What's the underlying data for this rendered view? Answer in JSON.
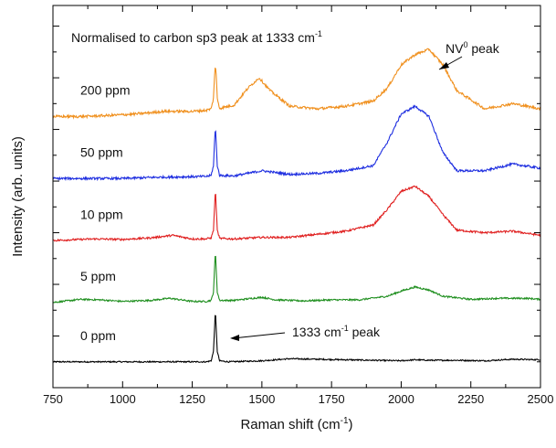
{
  "chart_data": {
    "type": "line",
    "title": "",
    "xlabel": "Raman shift",
    "xlabel_unit_base": "cm",
    "xlabel_unit_sup": "-1",
    "ylabel": "Intensity (arb. units)",
    "xlim": [
      750,
      2500
    ],
    "xticks": [
      750,
      1000,
      1250,
      1500,
      1750,
      2000,
      2250,
      2500
    ],
    "xtick_labels": [
      "750",
      "1000",
      "1250",
      "1500",
      "1750",
      "2000",
      "2250",
      "2500"
    ],
    "yticks_labeled": false,
    "grid": false,
    "annotations": {
      "header": {
        "text_before": "Normalised to carbon sp3 peak at 1333 cm",
        "sup": "-1"
      },
      "nv_peak": {
        "text_before": "NV",
        "sup": "0",
        "text_after": " peak",
        "points_to_x": 2070
      },
      "sp3_peak": {
        "text_before": "1333 cm",
        "sup": "-1",
        "text_after": " peak",
        "points_to_x": 1338
      }
    },
    "series": [
      {
        "name": "0 ppm",
        "color": "#000000",
        "offset": 0,
        "x": [
          750,
          1000,
          1200,
          1300,
          1318,
          1326,
          1330,
          1333,
          1336,
          1340,
          1348,
          1380,
          1500,
          1600,
          1700,
          1800,
          1900,
          2000,
          2050,
          2100,
          2200,
          2300,
          2400,
          2500
        ],
        "y": [
          0,
          0,
          0,
          0,
          0.02,
          0.2,
          0.65,
          1.0,
          0.65,
          0.2,
          0.02,
          0,
          0.02,
          0.06,
          0.05,
          0.04,
          0.03,
          0.02,
          0.04,
          0.03,
          0.03,
          0.02,
          0.05,
          0.04
        ]
      },
      {
        "name": "5 ppm",
        "color": "#1f8f1f",
        "offset": 1.15,
        "x": [
          750,
          850,
          920,
          1000,
          1100,
          1170,
          1250,
          1300,
          1318,
          1326,
          1330,
          1333,
          1336,
          1340,
          1348,
          1400,
          1450,
          1500,
          1550,
          1650,
          1750,
          1850,
          1950,
          2000,
          2050,
          2100,
          2150,
          2250,
          2350,
          2450,
          2500
        ],
        "y": [
          0,
          0.06,
          0.05,
          0.02,
          0.04,
          0.08,
          0.02,
          0.02,
          0.04,
          0.2,
          0.65,
          1.0,
          0.65,
          0.2,
          0.04,
          0.04,
          0.07,
          0.1,
          0.05,
          0.03,
          0.05,
          0.05,
          0.12,
          0.22,
          0.3,
          0.24,
          0.12,
          0.06,
          0.08,
          0.08,
          0.06
        ]
      },
      {
        "name": "10 ppm",
        "color": "#e02020",
        "offset": 2.35,
        "x": [
          750,
          900,
          1000,
          1100,
          1180,
          1250,
          1300,
          1318,
          1326,
          1330,
          1333,
          1336,
          1340,
          1348,
          1400,
          1500,
          1600,
          1700,
          1800,
          1900,
          1950,
          2000,
          2050,
          2100,
          2150,
          2200,
          2300,
          2400,
          2500
        ],
        "y": [
          0,
          0.03,
          0.02,
          0.05,
          0.1,
          0.03,
          0.03,
          0.05,
          0.2,
          0.65,
          1.0,
          0.65,
          0.2,
          0.04,
          0.03,
          0.06,
          0.06,
          0.12,
          0.18,
          0.3,
          0.6,
          0.95,
          1.05,
          0.85,
          0.5,
          0.2,
          0.15,
          0.18,
          0.1
        ]
      },
      {
        "name": "50 ppm",
        "color": "#1f2fe0",
        "offset": 3.55,
        "x": [
          750,
          1000,
          1100,
          1200,
          1300,
          1318,
          1326,
          1330,
          1333,
          1336,
          1340,
          1348,
          1400,
          1500,
          1600,
          1700,
          1800,
          1900,
          1950,
          2000,
          2050,
          2100,
          2150,
          2200,
          2300,
          2400,
          2500
        ],
        "y": [
          0,
          0,
          0.02,
          0.03,
          0.04,
          0.06,
          0.25,
          0.7,
          1.0,
          0.7,
          0.25,
          0.06,
          0.05,
          0.15,
          0.08,
          0.1,
          0.15,
          0.25,
          0.7,
          1.25,
          1.4,
          1.2,
          0.5,
          0.15,
          0.15,
          0.28,
          0.2
        ]
      },
      {
        "name": "200 ppm",
        "color": "#f0901e",
        "offset": 4.75,
        "x": [
          750,
          850,
          950,
          1050,
          1150,
          1250,
          1300,
          1318,
          1326,
          1330,
          1333,
          1336,
          1340,
          1348,
          1400,
          1450,
          1490,
          1530,
          1600,
          1700,
          1800,
          1900,
          1950,
          2000,
          2050,
          2100,
          2150,
          2200,
          2300,
          2400,
          2500
        ],
        "y": [
          0,
          0,
          0.02,
          0.05,
          0.1,
          0.1,
          0.12,
          0.15,
          0.35,
          0.8,
          1.0,
          0.8,
          0.35,
          0.16,
          0.22,
          0.55,
          0.75,
          0.5,
          0.2,
          0.15,
          0.2,
          0.3,
          0.55,
          1.0,
          1.2,
          1.3,
          1.0,
          0.5,
          0.15,
          0.25,
          0.15
        ]
      }
    ]
  }
}
